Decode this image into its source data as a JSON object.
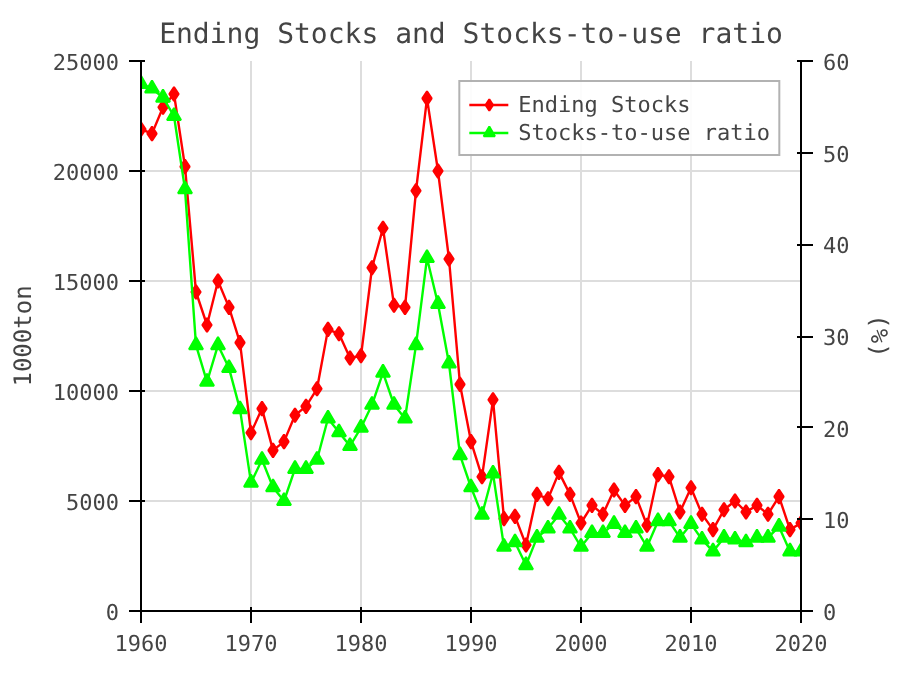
{
  "chart_data": {
    "type": "line",
    "title": "Ending Stocks and Stocks-to-use ratio",
    "ylabel": "1000ton",
    "y2label": "(%)",
    "x": [
      1960,
      1961,
      1962,
      1963,
      1964,
      1965,
      1966,
      1967,
      1968,
      1969,
      1970,
      1971,
      1972,
      1973,
      1974,
      1975,
      1976,
      1977,
      1978,
      1979,
      1980,
      1981,
      1982,
      1983,
      1984,
      1985,
      1986,
      1987,
      1988,
      1989,
      1990,
      1991,
      1992,
      1993,
      1994,
      1995,
      1996,
      1997,
      1998,
      1999,
      2000,
      2001,
      2002,
      2003,
      2004,
      2005,
      2006,
      2007,
      2008,
      2009,
      2010,
      2011,
      2012,
      2013,
      2014,
      2015,
      2016,
      2017,
      2018,
      2019,
      2020
    ],
    "series": [
      {
        "name": "Ending Stocks",
        "color": "#ff0000",
        "marker": "diamond",
        "values": [
          21900,
          21700,
          22900,
          23500,
          20200,
          14500,
          13000,
          15000,
          13800,
          12200,
          8100,
          9200,
          7300,
          7700,
          8900,
          9300,
          10100,
          12800,
          12600,
          11500,
          11600,
          15600,
          17400,
          13900,
          13800,
          19100,
          23300,
          20000,
          16000,
          10300,
          7700,
          6100,
          9600,
          4200,
          4300,
          3000,
          5300,
          5100,
          6300,
          5300,
          4000,
          4800,
          4400,
          5500,
          4800,
          5200,
          3900,
          6200,
          6100,
          4500,
          5600,
          4400,
          3700,
          4600,
          5000,
          4500,
          4800,
          4400,
          5200,
          3700,
          4000
        ]
      },
      {
        "name": "Stocks-to-use ratio",
        "color": "#00ff00",
        "marker": "triangle",
        "axis": "y2",
        "values": [
          57.5,
          57,
          56,
          54,
          46,
          29,
          25,
          29,
          26.5,
          22,
          14,
          16.5,
          13.5,
          12,
          15.5,
          15.5,
          16.5,
          21,
          19.5,
          18,
          20,
          22.5,
          26,
          22.5,
          21,
          29,
          38.5,
          33.5,
          27,
          17,
          13.5,
          10.5,
          15,
          7,
          7.5,
          5,
          8,
          9,
          10.5,
          9,
          7,
          8.5,
          8.5,
          9.5,
          8.5,
          9,
          7,
          9.8,
          9.8,
          8,
          9.5,
          7.8,
          6.5,
          8,
          7.8,
          7.5,
          8,
          8,
          9.2,
          6.5,
          6.5
        ]
      }
    ],
    "xlim": [
      1960,
      2020
    ],
    "xticks": [
      1960,
      1970,
      1980,
      1990,
      2000,
      2010,
      2020
    ],
    "ylim": [
      0,
      25000
    ],
    "yticks": [
      0,
      5000,
      10000,
      15000,
      20000,
      25000
    ],
    "y2lim": [
      0,
      60
    ],
    "y2ticks": [
      0,
      10,
      20,
      30,
      40,
      50,
      60
    ],
    "grid": true,
    "legend": "top right",
    "line_style": "solid"
  }
}
